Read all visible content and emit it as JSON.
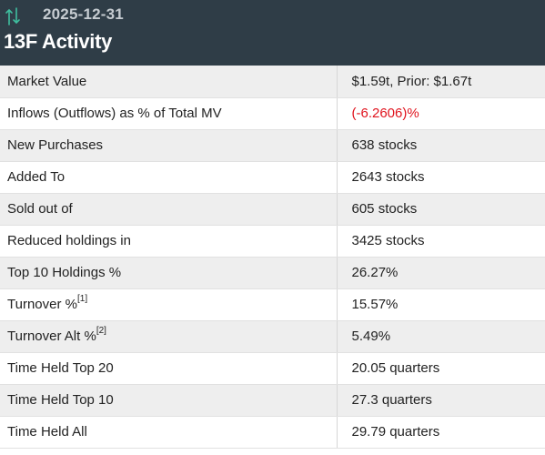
{
  "header": {
    "date": "2025-12-31",
    "title": "13F Activity",
    "icon": "sort-arrows-icon",
    "icon_color": "#3fbf9f"
  },
  "colors": {
    "header_bg": "#2f3d47",
    "negative": "#e0141e"
  },
  "rows": [
    {
      "label": "Market Value",
      "value": "$1.59t, Prior: $1.67t"
    },
    {
      "label": "Inflows (Outflows) as % of Total MV",
      "value": "(-6.2606)%"
    },
    {
      "label": "New Purchases",
      "value": "638 stocks"
    },
    {
      "label": "Added To",
      "value": "2643 stocks"
    },
    {
      "label": "Sold out of",
      "value": "605 stocks"
    },
    {
      "label": "Reduced holdings in",
      "value": "3425 stocks"
    },
    {
      "label": "Top 10 Holdings %",
      "value": "26.27%"
    },
    {
      "label": "Turnover %",
      "footnote": "[1]",
      "value": "15.57%"
    },
    {
      "label": "Turnover Alt %",
      "footnote": "[2]",
      "value": "5.49%"
    },
    {
      "label": "Time Held Top 20",
      "value": "20.05 quarters"
    },
    {
      "label": "Time Held Top 10",
      "value": "27.3 quarters"
    },
    {
      "label": "Time Held All",
      "value": "29.79 quarters"
    }
  ]
}
